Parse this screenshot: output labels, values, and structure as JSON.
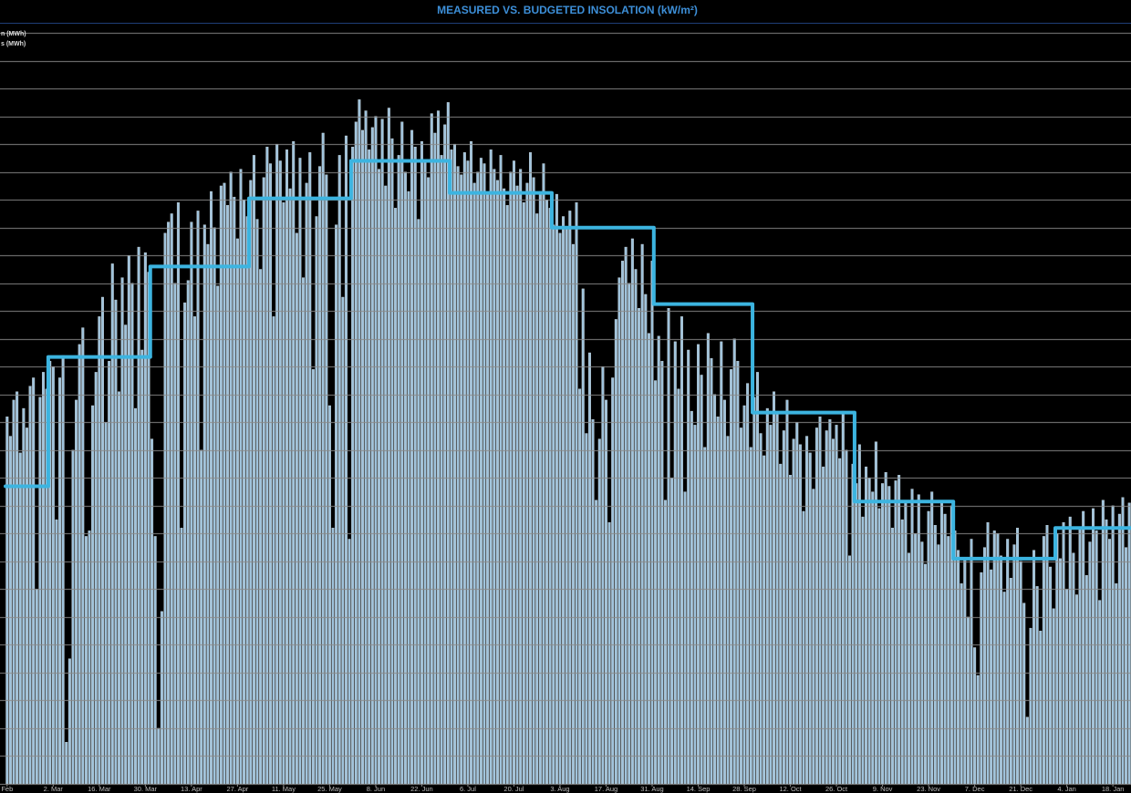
{
  "chart_data": {
    "type": "bar",
    "title": "MEASURED VS. BUDGETED INSOLATION (kW/m²)",
    "grid": true,
    "legend": "top-left",
    "xlim": [
      -0.5,
      341.5
    ],
    "ylim": [
      0,
      27.2
    ],
    "yticks": [
      0,
      1,
      2,
      3,
      4,
      5,
      6,
      7,
      8,
      9,
      10,
      11,
      12,
      13,
      14,
      15,
      16,
      17,
      18,
      19,
      20,
      21,
      22,
      23,
      24,
      25,
      26,
      27
    ],
    "xticks": [
      {
        "value": 0,
        "label": "Feb"
      },
      {
        "value": 14,
        "label": "2. Mar"
      },
      {
        "value": 28,
        "label": "16. Mar"
      },
      {
        "value": 42,
        "label": "30. Mar"
      },
      {
        "value": 56,
        "label": "13. Apr"
      },
      {
        "value": 70,
        "label": "27. Apr"
      },
      {
        "value": 84,
        "label": "11. May"
      },
      {
        "value": 98,
        "label": "25. May"
      },
      {
        "value": 112,
        "label": "8. Jun"
      },
      {
        "value": 126,
        "label": "22. Jun"
      },
      {
        "value": 140,
        "label": "6. Jul"
      },
      {
        "value": 154,
        "label": "20. Jul"
      },
      {
        "value": 168,
        "label": "3. Aug"
      },
      {
        "value": 182,
        "label": "17. Aug"
      },
      {
        "value": 196,
        "label": "31. Aug"
      },
      {
        "value": 210,
        "label": "14. Sep"
      },
      {
        "value": 224,
        "label": "28. Sep"
      },
      {
        "value": 238,
        "label": "12. Oct"
      },
      {
        "value": 252,
        "label": "26. Oct"
      },
      {
        "value": 266,
        "label": "9. Nov"
      },
      {
        "value": 280,
        "label": "23. Nov"
      },
      {
        "value": 294,
        "label": "7. Dec"
      },
      {
        "value": 308,
        "label": "21. Dec"
      },
      {
        "value": 322,
        "label": "4. Jan"
      },
      {
        "value": 336,
        "label": "18. Jan"
      }
    ],
    "series": [
      {
        "name": "n (MWh)",
        "type": "step",
        "color": "#3cb4e0",
        "x": [
          0,
          13,
          44,
          74,
          105,
          135,
          166,
          197,
          227,
          258,
          288,
          319
        ],
        "values": [
          10.7,
          15.35,
          18.6,
          21.05,
          22.4,
          21.25,
          20.0,
          17.25,
          13.35,
          10.15,
          8.1,
          9.2
        ]
      },
      {
        "name": "s (MWh)",
        "type": "bar",
        "color": "#9fc3dc",
        "values": [
          13.2,
          12.5,
          13.8,
          14.1,
          11.9,
          13.5,
          12.8,
          14.3,
          14.6,
          7.0,
          13.9,
          14.8,
          14.2,
          15.2,
          15.0,
          9.5,
          14.6,
          15.4,
          1.5,
          4.5,
          12.0,
          13.8,
          15.8,
          16.4,
          8.9,
          9.1,
          13.6,
          14.8,
          16.8,
          17.5,
          13.0,
          15.2,
          18.7,
          17.4,
          14.1,
          18.2,
          16.5,
          19.0,
          18.0,
          13.5,
          19.3,
          15.6,
          19.1,
          18.4,
          12.4,
          8.9,
          2.0,
          6.2,
          19.8,
          20.2,
          20.5,
          18.0,
          20.9,
          9.2,
          17.3,
          18.1,
          20.2,
          16.8,
          20.6,
          12.0,
          20.1,
          19.4,
          21.3,
          20.0,
          17.9,
          21.5,
          21.6,
          20.8,
          22.0,
          21.1,
          19.6,
          22.1,
          21.0,
          20.4,
          21.7,
          22.6,
          20.3,
          18.5,
          21.8,
          22.9,
          22.3,
          16.8,
          23.0,
          22.4,
          20.9,
          22.8,
          21.4,
          23.1,
          19.8,
          22.5,
          18.2,
          21.6,
          22.7,
          14.9,
          20.4,
          22.2,
          23.4,
          21.9,
          13.6,
          9.2,
          20.1,
          22.6,
          17.5,
          23.3,
          8.8,
          22.9,
          23.8,
          24.6,
          23.5,
          24.2,
          22.8,
          23.6,
          24.0,
          22.1,
          23.9,
          21.5,
          24.3,
          23.2,
          20.7,
          22.6,
          23.8,
          22.0,
          21.3,
          23.5,
          22.9,
          20.3,
          23.1,
          22.4,
          21.8,
          24.1,
          23.4,
          24.2,
          22.6,
          23.7,
          24.5,
          22.8,
          23.0,
          22.2,
          21.9,
          22.7,
          22.4,
          23.1,
          21.6,
          22.0,
          22.5,
          22.3,
          21.2,
          22.8,
          22.1,
          21.7,
          22.6,
          21.4,
          20.8,
          22.0,
          22.4,
          21.5,
          22.1,
          20.9,
          21.6,
          22.7,
          21.8,
          20.5,
          21.3,
          22.3,
          21.0,
          20.7,
          20.1,
          21.2,
          19.8,
          20.4,
          20.0,
          20.6,
          19.4,
          20.9,
          14.2,
          17.8,
          12.6,
          15.5,
          13.1,
          10.2,
          12.4,
          15.0,
          13.8,
          9.4,
          14.6,
          16.7,
          18.2,
          18.8,
          19.3,
          18.0,
          19.6,
          18.5,
          17.1,
          19.4,
          17.6,
          16.2,
          18.8,
          14.5,
          16.1,
          15.2,
          10.2,
          17.1,
          11.0,
          15.9,
          14.2,
          16.8,
          10.5,
          15.6,
          13.4,
          12.9,
          15.8,
          14.7,
          12.1,
          16.2,
          15.3,
          14.0,
          13.2,
          15.9,
          13.8,
          12.5,
          14.9,
          16.0,
          15.2,
          12.8,
          13.6,
          14.4,
          12.1,
          13.9,
          14.8,
          12.6,
          11.8,
          13.5,
          12.9,
          14.1,
          13.3,
          11.5,
          12.7,
          13.8,
          11.1,
          12.4,
          13.0,
          12.2,
          9.8,
          12.5,
          11.9,
          10.6,
          12.8,
          13.2,
          11.4,
          12.7,
          13.1,
          12.4,
          12.9,
          11.7,
          13.4,
          12.0,
          8.2,
          11.5,
          10.8,
          12.2,
          9.6,
          11.4,
          11.0,
          10.5,
          12.3,
          9.9,
          10.8,
          11.2,
          10.7,
          9.2,
          10.9,
          11.1,
          9.5,
          10.2,
          8.3,
          10.6,
          9.0,
          10.4,
          8.7,
          7.9,
          9.8,
          10.5,
          9.3,
          8.6,
          10.1,
          9.7,
          8.9,
          10.0,
          9.1,
          8.4,
          7.2,
          8.1,
          6.0,
          8.8,
          4.9,
          3.9,
          7.6,
          8.5,
          9.4,
          7.7,
          9.1,
          9.0,
          8.2,
          6.9,
          8.8,
          7.4,
          8.6,
          9.2,
          8.0,
          6.5,
          2.4,
          5.6,
          8.4,
          7.1,
          5.5,
          8.9,
          9.3,
          7.8,
          6.3,
          9.0,
          8.1,
          9.4,
          7.0,
          9.6,
          8.3,
          6.8,
          9.2,
          9.8,
          7.5,
          8.7,
          9.9,
          9.1,
          6.6,
          10.2,
          9.5,
          8.8,
          10.0,
          7.2,
          9.7,
          10.3,
          8.5,
          10.1
        ]
      }
    ]
  }
}
